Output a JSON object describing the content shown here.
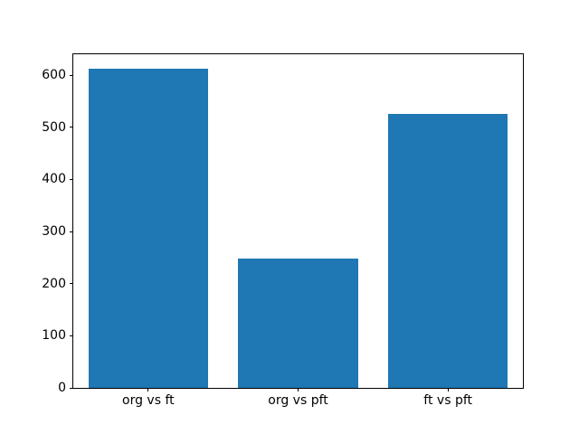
{
  "chart_data": {
    "type": "bar",
    "categories": [
      "org vs ft",
      "org vs pft",
      "ft vs pft"
    ],
    "values": [
      613,
      248,
      525
    ],
    "title": "",
    "xlabel": "",
    "ylabel": "",
    "ylim": [
      0,
      640
    ],
    "yticks": [
      0,
      100,
      200,
      300,
      400,
      500,
      600
    ],
    "bar_color": "#1f77b4",
    "axes_color": "#000000",
    "background_color": "#ffffff",
    "grid": false,
    "legend": null,
    "bar_width_fraction": 0.8
  }
}
